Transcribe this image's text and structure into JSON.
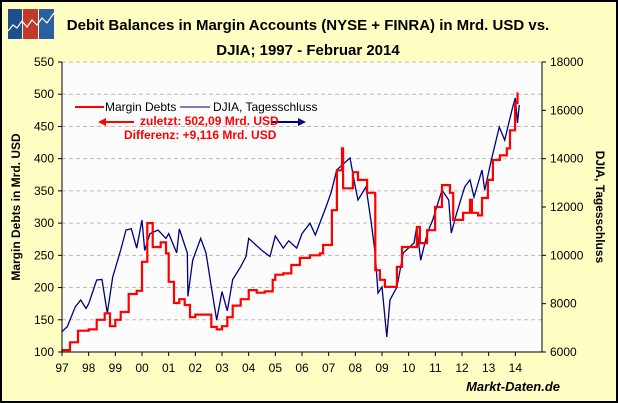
{
  "title_line1": "Debit Balances in Margin Accounts (NYSE + FINRA) in Mrd. USD vs.",
  "title_line2": "DJIA; 1997 - Februar 2014",
  "source": "Markt-Daten.de",
  "logo": "markt-daten-logo",
  "annotations": {
    "latest": "zuletzt: 502,09 Mrd. USD",
    "difference": "Differenz: +9,116 Mrd. USD"
  },
  "colors": {
    "margin_debt": "#ff0000",
    "djia": "#000080",
    "background": "#ffffc4",
    "plot": "#fcfcfc"
  },
  "chart_data": {
    "type": "line",
    "title": "Debit Balances in Margin Accounts (NYSE + FINRA) in Mrd. USD vs. DJIA; 1997 - Februar 2014",
    "ylabel": "Margin Debts in Mrd. USD",
    "y2label": "DJIA, Tagesschluss",
    "xlim": [
      1997,
      2015
    ],
    "ylim": [
      100,
      550
    ],
    "y2lim": [
      6000,
      18000
    ],
    "grid": true,
    "legend": "top-left",
    "x_ticks": [
      "97",
      "98",
      "99",
      "00",
      "01",
      "02",
      "03",
      "04",
      "05",
      "06",
      "07",
      "08",
      "09",
      "10",
      "11",
      "12",
      "13",
      "14"
    ],
    "y_ticks": [
      100,
      150,
      200,
      250,
      300,
      350,
      400,
      450,
      500,
      550
    ],
    "y2_ticks": [
      6000,
      8000,
      10000,
      12000,
      14000,
      16000,
      18000
    ],
    "series": [
      {
        "name": "Margin Debts",
        "axis": "left",
        "color": "#ff0000",
        "x": [
          1997.0,
          1997.3,
          1997.6,
          1998.0,
          1998.3,
          1998.6,
          1998.8,
          1999.0,
          1999.2,
          1999.5,
          1999.8,
          2000.0,
          2000.2,
          2000.4,
          2000.7,
          2000.9,
          2001.0,
          2001.2,
          2001.4,
          2001.6,
          2001.8,
          2002.0,
          2002.3,
          2002.6,
          2002.8,
          2003.0,
          2003.2,
          2003.4,
          2003.7,
          2004.0,
          2004.3,
          2004.6,
          2004.9,
          2005.0,
          2005.3,
          2005.6,
          2005.92,
          2006.3,
          2006.67,
          2006.79,
          2007.12,
          2007.31,
          2007.5,
          2007.54,
          2007.91,
          2008.1,
          2008.44,
          2008.74,
          2008.75,
          2008.92,
          2009.11,
          2009.56,
          2009.75,
          2010.31,
          2010.42,
          2010.69,
          2010.99,
          2011.25,
          2011.55,
          2011.67,
          2012.04,
          2012.3,
          2012.37,
          2012.6,
          2012.75,
          2012.97,
          2013.16,
          2013.42,
          2013.68,
          2013.8,
          2013.99,
          2014.08
        ],
        "values": [
          103,
          115,
          133,
          135,
          150,
          160,
          140,
          150,
          162,
          190,
          195,
          240,
          300,
          263,
          270,
          253,
          209,
          176,
          182,
          173,
          154,
          158,
          158,
          139,
          135,
          140,
          154,
          172,
          182,
          196,
          192,
          194,
          212,
          220,
          222,
          235,
          246,
          250,
          253,
          266,
          320,
          382,
          416,
          354,
          379,
          367,
          347,
          343,
          227,
          212,
          201,
          232,
          263,
          294,
          269,
          289,
          325,
          359,
          347,
          305,
          316,
          336,
          316,
          312,
          339,
          367,
          398,
          405,
          416,
          444,
          486,
          502
        ]
      },
      {
        "name": "DJIA, Tagesschluss",
        "axis": "right",
        "color": "#000080",
        "x": [
          1997.0,
          1997.2,
          1997.5,
          1997.7,
          1997.9,
          1998.0,
          1998.3,
          1998.5,
          1998.7,
          1998.9,
          1999.2,
          1999.4,
          1999.6,
          1999.8,
          2000.0,
          2000.1,
          2000.3,
          2000.6,
          2000.9,
          2001.0,
          2001.3,
          2001.4,
          2001.7,
          2001.72,
          2001.9,
          2002.2,
          2002.4,
          2002.6,
          2002.8,
          2003.0,
          2003.2,
          2003.4,
          2003.7,
          2003.9,
          2004.0,
          2004.5,
          2004.8,
          2005.0,
          2005.3,
          2005.5,
          2005.8,
          2006.0,
          2006.3,
          2006.5,
          2006.9,
          2007.1,
          2007.3,
          2007.8,
          2008.0,
          2008.1,
          2008.4,
          2008.6,
          2008.74,
          2008.85,
          2009.0,
          2009.18,
          2009.3,
          2009.56,
          2009.8,
          2010.2,
          2010.3,
          2010.45,
          2010.7,
          2010.9,
          2011.25,
          2011.5,
          2011.6,
          2011.8,
          2012.1,
          2012.3,
          2012.45,
          2012.75,
          2012.85,
          2013.1,
          2013.4,
          2013.6,
          2013.9,
          2014.0,
          2014.08,
          2014.15
        ],
        "values": [
          6840,
          7050,
          7870,
          8150,
          7800,
          8000,
          8980,
          9000,
          7600,
          9100,
          10220,
          11050,
          11100,
          10300,
          11460,
          10200,
          10900,
          11050,
          10700,
          10900,
          10100,
          11100,
          10100,
          8300,
          9800,
          10700,
          10100,
          8700,
          7320,
          8500,
          7700,
          9000,
          9530,
          9950,
          10700,
          10200,
          9950,
          10800,
          10300,
          10600,
          10300,
          10900,
          11330,
          10840,
          12000,
          12620,
          13530,
          14030,
          12830,
          12290,
          12830,
          11330,
          10100,
          8440,
          8690,
          6620,
          8150,
          8690,
          10100,
          10510,
          11170,
          9800,
          10920,
          11460,
          12700,
          12290,
          10920,
          11750,
          12830,
          13120,
          12410,
          13530,
          12700,
          13940,
          15310,
          14770,
          16140,
          16510,
          15480,
          16220
        ]
      }
    ]
  }
}
